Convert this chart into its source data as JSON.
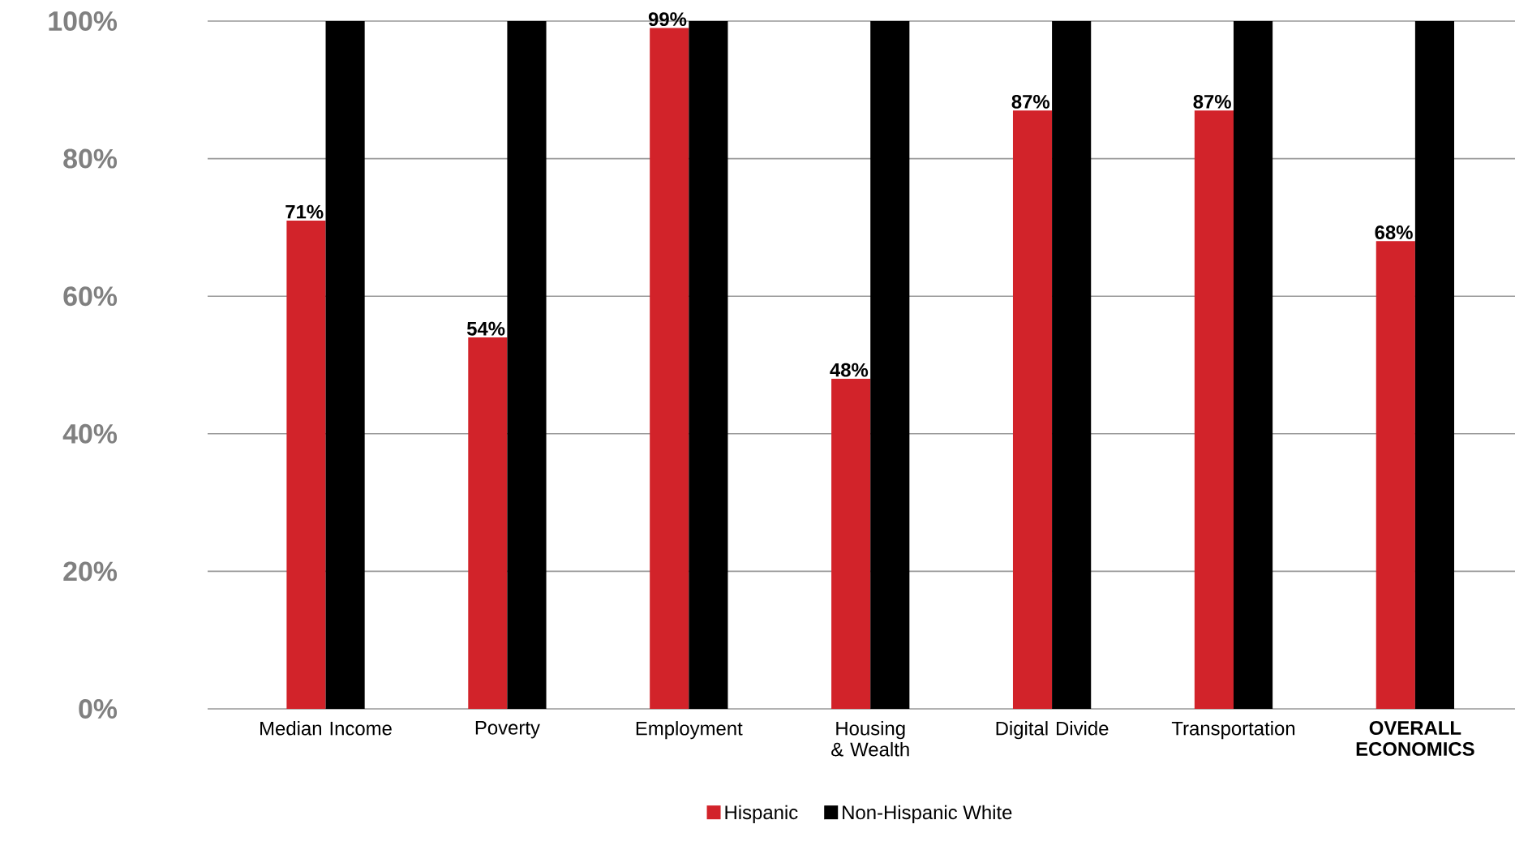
{
  "chart_data": {
    "type": "bar",
    "categories": [
      "Median Income",
      "Poverty",
      "Employment",
      "Housing & Wealth",
      "Digital Divide",
      "Transportation",
      "OVERALL ECONOMICS"
    ],
    "series": [
      {
        "name": "Hispanic",
        "color": "#d2232a",
        "values": [
          71,
          54,
          99,
          48,
          87,
          87,
          68
        ],
        "value_labels": [
          "71%",
          "54%",
          "99%",
          "48%",
          "87%",
          "87%",
          "68%"
        ]
      },
      {
        "name": "Non-Hispanic White",
        "color": "#000000",
        "values": [
          100,
          100,
          100,
          100,
          100,
          100,
          100
        ]
      }
    ],
    "ylim": [
      0,
      100
    ],
    "yticks": [
      {
        "value": 0,
        "label": "0%"
      },
      {
        "value": 20,
        "label": "20%"
      },
      {
        "value": 40,
        "label": "40%"
      },
      {
        "value": 60,
        "label": "60%"
      },
      {
        "value": 80,
        "label": "80%"
      },
      {
        "value": 100,
        "label": "100%"
      }
    ],
    "grid": "y",
    "legend": "bottom"
  }
}
